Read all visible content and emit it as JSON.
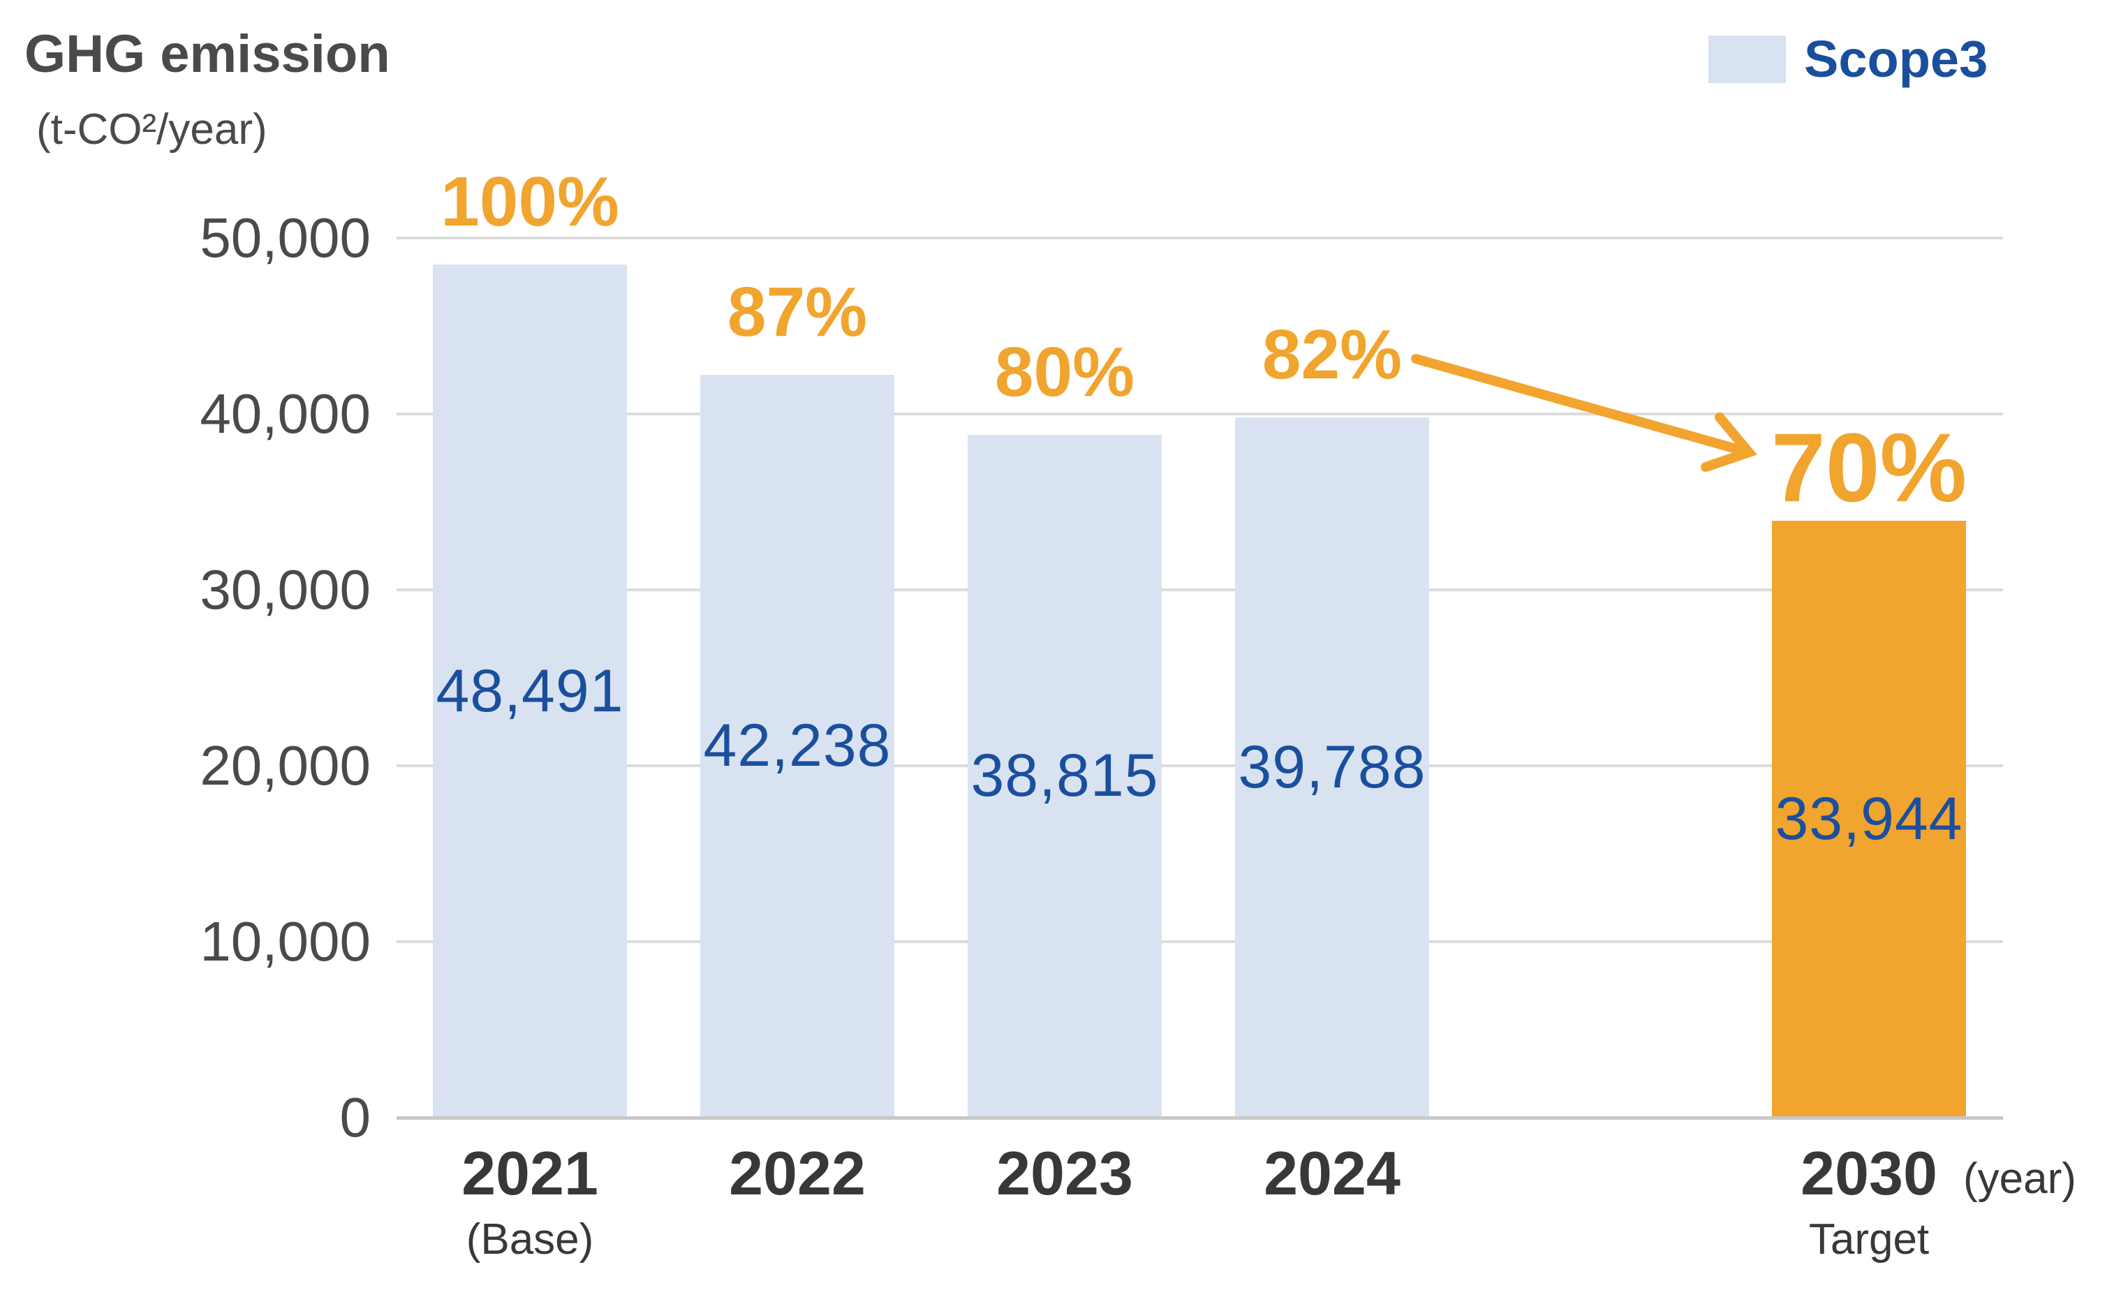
{
  "header": {
    "title": "GHG emission",
    "unit": "(t-CO²/year)",
    "legend": {
      "label": "Scope3"
    }
  },
  "axis": {
    "x_suffix": "(year)"
  },
  "chart_data": {
    "type": "bar",
    "title": "GHG emission",
    "ylabel": "t-CO²/year",
    "xlabel": "year",
    "ylim": [
      0,
      50000
    ],
    "yticks": [
      0,
      10000,
      20000,
      30000,
      40000,
      50000
    ],
    "ytick_labels": [
      "0",
      "10,000",
      "20,000",
      "30,000",
      "40,000",
      "50,000"
    ],
    "grid": true,
    "legend_entries": [
      "Scope3"
    ],
    "legend_position": "top-right",
    "categories": [
      "2021",
      "2022",
      "2023",
      "2024",
      "2030"
    ],
    "category_sublabels": [
      "(Base)",
      "",
      "",
      "",
      "Target"
    ],
    "series": [
      {
        "name": "Scope3",
        "values": [
          48491,
          42238,
          38815,
          39788,
          33944
        ]
      }
    ],
    "value_labels": [
      "48,491",
      "42,238",
      "38,815",
      "39,788",
      "33,944"
    ],
    "percent_labels": [
      "100%",
      "87%",
      "80%",
      "82%",
      "70%"
    ],
    "highlighted_category": "2030",
    "annotation_arrow": {
      "from_label": "82%",
      "to_label": "70%"
    }
  },
  "colors": {
    "bar": "#D9E2F0",
    "bar_highlight": "#F1A42E",
    "percent_text": "#F1A42E",
    "arrow": "#F1A42E",
    "value_text": "#1A4F9E",
    "legend_text": "#1A4F9E",
    "title_text": "#4A4A4A",
    "axis_text": "#4A4A4A",
    "year_text": "#383838",
    "gridline": "#DBDBDB",
    "baseline": "#C8C8C8"
  }
}
